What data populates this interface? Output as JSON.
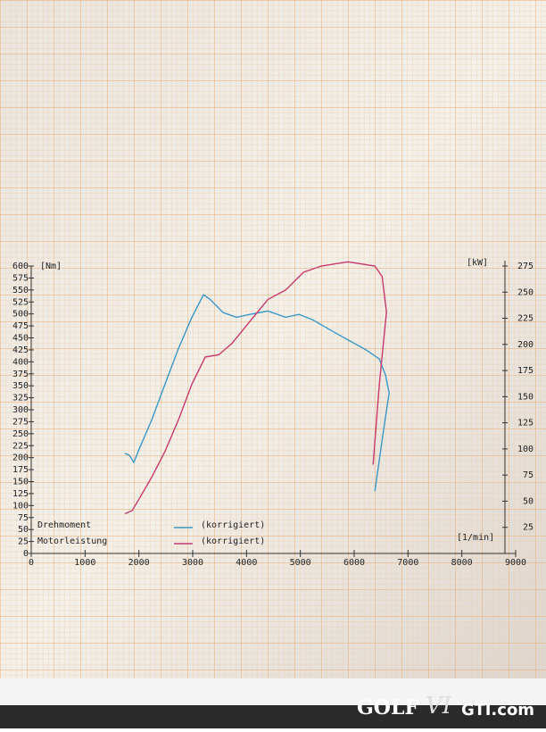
{
  "chart_data": {
    "type": "line",
    "y_unit": "[Nm]",
    "y2_unit": "[kW]",
    "x_unit": "[1/min]",
    "xlim": [
      0,
      9000
    ],
    "xticks": [
      0,
      1000,
      2000,
      3000,
      4000,
      5000,
      6000,
      7000,
      8000,
      9000
    ],
    "ylim": [
      0,
      600
    ],
    "yticks": [
      0,
      25,
      50,
      75,
      100,
      125,
      150,
      175,
      200,
      225,
      250,
      275,
      300,
      325,
      350,
      375,
      400,
      425,
      450,
      475,
      500,
      525,
      550,
      575,
      600
    ],
    "y2lim": [
      0,
      275
    ],
    "y2ticks": [
      25,
      50,
      75,
      100,
      125,
      150,
      175,
      200,
      225,
      250,
      275
    ],
    "series": [
      {
        "name": "Drehmoment",
        "note": "(korrigiert)",
        "color": "#3a98c6",
        "x": [
          1741,
          1824,
          1907,
          1990,
          2239,
          2488,
          2736,
          2985,
          3200,
          3317,
          3566,
          3814,
          4063,
          4395,
          4726,
          4975,
          5224,
          5721,
          6219,
          6468,
          6584,
          6650,
          6551,
          6385
        ],
        "values": [
          209,
          205,
          190,
          214,
          279,
          354,
          428,
          493,
          540,
          531,
          503,
          493,
          499,
          506,
          493,
          499,
          488,
          456,
          425,
          406,
          372,
          335,
          261,
          130
        ]
      },
      {
        "name": "Motorleistung",
        "note": "(korrigiert)",
        "color": "#c83a6c",
        "axis": "y2",
        "x": [
          1741,
          1874,
          1990,
          2239,
          2488,
          2736,
          2985,
          3234,
          3483,
          3731,
          4063,
          4395,
          4726,
          5058,
          5390,
          5887,
          6385,
          6518,
          6600,
          6468,
          6352
        ],
        "values": [
          38,
          41,
          51,
          73,
          98,
          128,
          162,
          188,
          190,
          201,
          222,
          243,
          252,
          269,
          275,
          279,
          275,
          265,
          231,
          162,
          85
        ]
      }
    ],
    "watermark": {
      "brand": "GOLF",
      "model": "VI",
      "site": "GTI.com"
    }
  }
}
